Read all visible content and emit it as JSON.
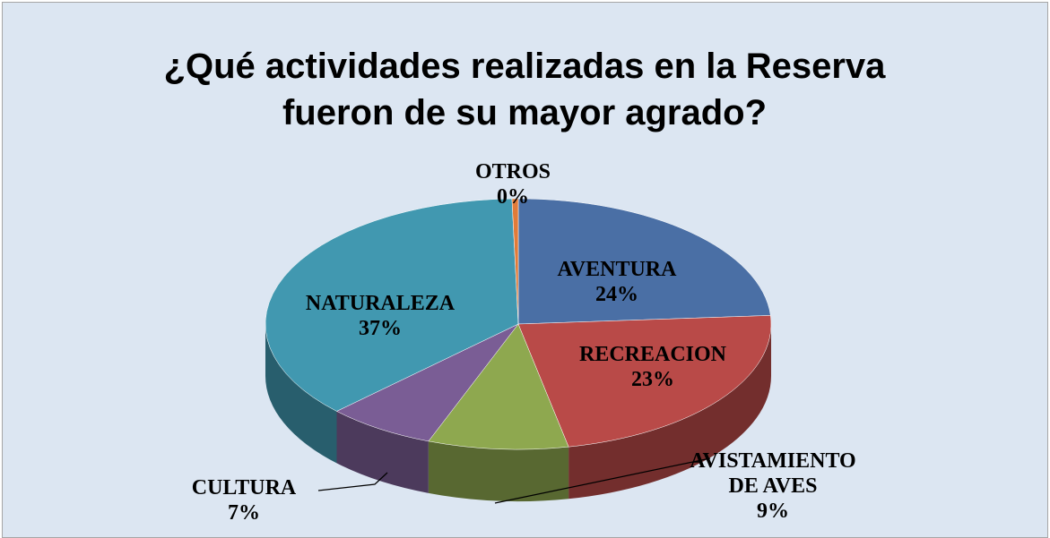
{
  "chart_data": {
    "type": "pie3d",
    "title": "¿Qué actividades realizadas en la Reserva fueron de su mayor agrado?",
    "categories": [
      "AVENTURA",
      "RECREACION",
      "AVISTAMIENTO DE AVES",
      "CULTURA",
      "NATURALEZA",
      "OTROS"
    ],
    "values": [
      24,
      23,
      9,
      7,
      37,
      0.4
    ],
    "value_labels": [
      "24%",
      "23%",
      "9%",
      "7%",
      "37%",
      "0%"
    ],
    "colors": [
      "#4a6fa5",
      "#b94a48",
      "#8ea84f",
      "#7a5d95",
      "#4198b0",
      "#e07b39"
    ]
  }
}
